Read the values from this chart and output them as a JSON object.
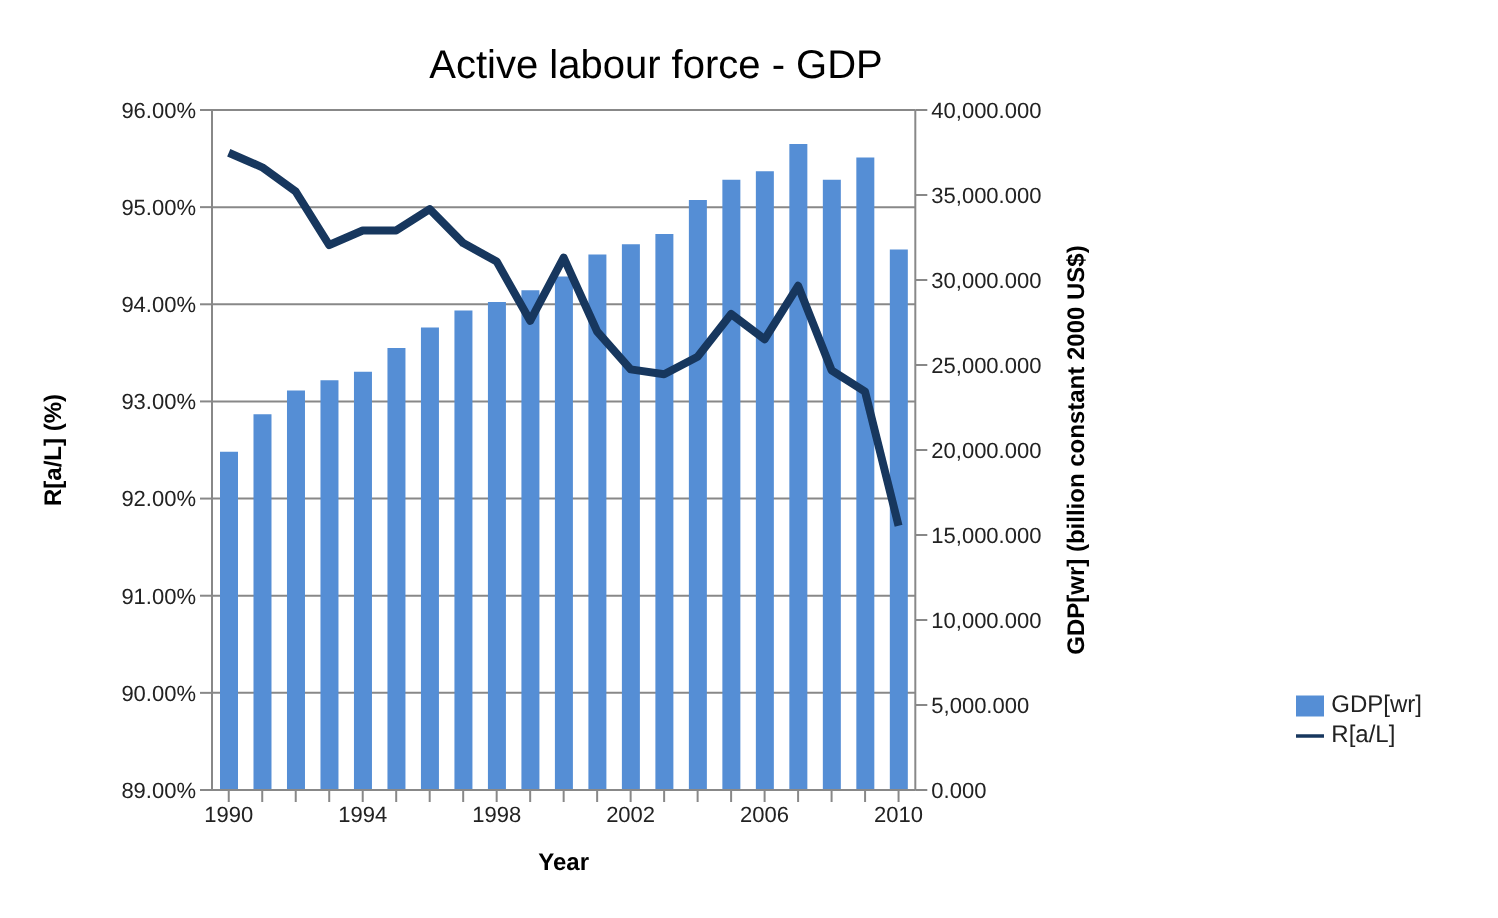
{
  "chart_data": {
    "type": "bar",
    "title": "Active labour force - GDP",
    "xlabel": "Year",
    "ylabel": "R[a/L] (%)",
    "y2label": "GDP[wr] (billion constant 2000 US$)",
    "categories": [
      "1990",
      null,
      null,
      null,
      "1994",
      null,
      null,
      null,
      "1998",
      null,
      null,
      null,
      "2002",
      null,
      null,
      null,
      "2006",
      null,
      null,
      null,
      "2010"
    ],
    "series": [
      {
        "name": "GDP[wr]",
        "axis": "y2",
        "color": "#558ed5",
        "values": [
          19900,
          22100,
          23500,
          24100,
          24600,
          26000,
          27200,
          28200,
          28700,
          29400,
          30200,
          31500,
          32100,
          32700,
          34700,
          35900,
          36400,
          38000,
          35900,
          37200,
          31800
        ]
      },
      {
        "name": "R[a/L]",
        "type": "line",
        "color": "#17375e",
        "values": [
          95.56,
          95.41,
          95.16,
          94.61,
          94.76,
          94.76,
          94.98,
          94.63,
          94.44,
          93.83,
          94.48,
          93.72,
          93.33,
          93.28,
          93.46,
          93.9,
          93.64,
          94.19,
          93.32,
          93.1,
          91.72
        ]
      }
    ],
    "ylim": [
      89,
      96
    ],
    "yticks": [
      {
        "value": 89,
        "label": "89.00%"
      },
      {
        "value": 90,
        "label": "90.00%"
      },
      {
        "value": 91,
        "label": "91.00%"
      },
      {
        "value": 92,
        "label": "92.00%"
      },
      {
        "value": 93,
        "label": "93.00%"
      },
      {
        "value": 94,
        "label": "94.00%"
      },
      {
        "value": 95,
        "label": "95.00%"
      },
      {
        "value": 96,
        "label": "96.00%"
      }
    ],
    "y2lim": [
      0,
      40000
    ],
    "y2ticks": [
      {
        "value": 0,
        "label": "0.000"
      },
      {
        "value": 5000,
        "label": "5,000.000"
      },
      {
        "value": 10000,
        "label": "10,000.000"
      },
      {
        "value": 15000,
        "label": "15,000.000"
      },
      {
        "value": 20000,
        "label": "20,000.000"
      },
      {
        "value": 25000,
        "label": "25,000.000"
      },
      {
        "value": 30000,
        "label": "30,000.000"
      },
      {
        "value": 35000,
        "label": "35,000.000"
      },
      {
        "value": 40000,
        "label": "40,000.000"
      }
    ],
    "grid": "y",
    "legend": "right",
    "marker": "none",
    "line_style": "solid"
  }
}
